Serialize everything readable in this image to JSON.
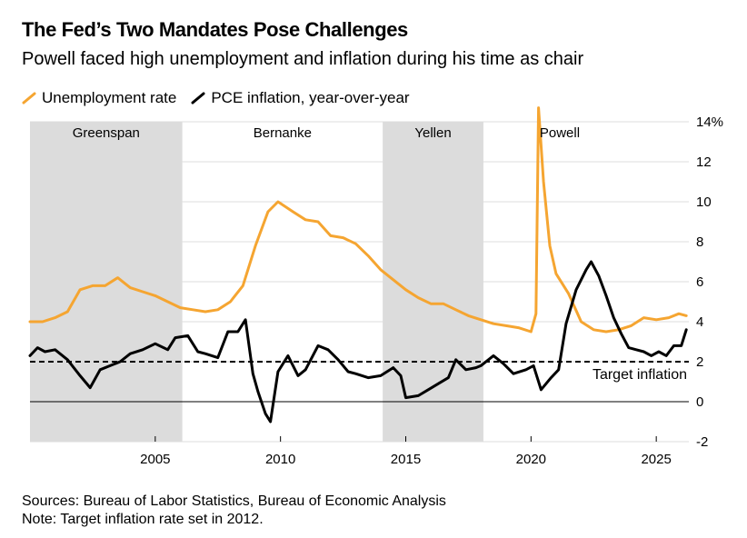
{
  "title": "The Fed’s Two Mandates Pose Challenges",
  "subtitle": "Powell faced high unemployment and inflation during his time as chair",
  "footer": {
    "sources": "Sources: Bureau of Labor Statistics, Bureau of Economic Analysis",
    "note": "Note: Target inflation rate set in 2012."
  },
  "colors": {
    "unemployment": "#f5a531",
    "inflation": "#000000",
    "shade": "#dcdcdc",
    "grid": "#dddddd"
  },
  "chart_data": {
    "type": "line",
    "x_unit": "year",
    "xlim": [
      2000,
      2026.3
    ],
    "ylim": [
      -2,
      14
    ],
    "y_ticks": [
      -2,
      0,
      2,
      4,
      6,
      8,
      10,
      12,
      14
    ],
    "y_tick_labels": [
      "-2",
      "0",
      "2",
      "4",
      "6",
      "8",
      "10",
      "12",
      "14%"
    ],
    "x_ticks": [
      2005,
      2010,
      2015,
      2020,
      2025
    ],
    "x_tick_labels": [
      "2005",
      "2010",
      "2015",
      "2020",
      "2025"
    ],
    "grid": true,
    "legend_position": "top-left",
    "chairs": [
      {
        "name": "Greenspan",
        "start": 2000,
        "end": 2006.08,
        "shaded": true
      },
      {
        "name": "Bernanke",
        "start": 2006.08,
        "end": 2014.08,
        "shaded": false
      },
      {
        "name": "Yellen",
        "start": 2014.08,
        "end": 2018.1,
        "shaded": true
      },
      {
        "name": "Powell",
        "start": 2018.1,
        "end": 2026.3,
        "shaded": false
      }
    ],
    "reference_lines": [
      {
        "label": "Target inflation",
        "y": 2,
        "style": "dashed"
      }
    ],
    "series": [
      {
        "name": "Unemployment rate",
        "color": "#f5a531",
        "points": [
          [
            2000.0,
            4.0
          ],
          [
            2000.5,
            4.0
          ],
          [
            2001.0,
            4.2
          ],
          [
            2001.5,
            4.5
          ],
          [
            2002.0,
            5.6
          ],
          [
            2002.5,
            5.8
          ],
          [
            2003.0,
            5.8
          ],
          [
            2003.5,
            6.2
          ],
          [
            2004.0,
            5.7
          ],
          [
            2004.5,
            5.5
          ],
          [
            2005.0,
            5.3
          ],
          [
            2005.5,
            5.0
          ],
          [
            2006.0,
            4.7
          ],
          [
            2006.5,
            4.6
          ],
          [
            2007.0,
            4.5
          ],
          [
            2007.5,
            4.6
          ],
          [
            2008.0,
            5.0
          ],
          [
            2008.5,
            5.8
          ],
          [
            2009.0,
            7.8
          ],
          [
            2009.5,
            9.5
          ],
          [
            2009.9,
            10.0
          ],
          [
            2010.5,
            9.5
          ],
          [
            2011.0,
            9.1
          ],
          [
            2011.5,
            9.0
          ],
          [
            2012.0,
            8.3
          ],
          [
            2012.5,
            8.2
          ],
          [
            2013.0,
            7.9
          ],
          [
            2013.5,
            7.3
          ],
          [
            2014.0,
            6.6
          ],
          [
            2014.5,
            6.1
          ],
          [
            2015.0,
            5.6
          ],
          [
            2015.5,
            5.2
          ],
          [
            2016.0,
            4.9
          ],
          [
            2016.5,
            4.9
          ],
          [
            2017.0,
            4.6
          ],
          [
            2017.5,
            4.3
          ],
          [
            2018.0,
            4.1
          ],
          [
            2018.5,
            3.9
          ],
          [
            2019.0,
            3.8
          ],
          [
            2019.5,
            3.7
          ],
          [
            2020.0,
            3.5
          ],
          [
            2020.2,
            4.4
          ],
          [
            2020.3,
            14.7
          ],
          [
            2020.5,
            11.0
          ],
          [
            2020.75,
            7.8
          ],
          [
            2021.0,
            6.4
          ],
          [
            2021.5,
            5.4
          ],
          [
            2022.0,
            4.0
          ],
          [
            2022.5,
            3.6
          ],
          [
            2023.0,
            3.5
          ],
          [
            2023.5,
            3.6
          ],
          [
            2024.0,
            3.8
          ],
          [
            2024.5,
            4.2
          ],
          [
            2025.0,
            4.1
          ],
          [
            2025.5,
            4.2
          ],
          [
            2025.9,
            4.4
          ],
          [
            2026.2,
            4.3
          ]
        ]
      },
      {
        "name": "PCE inflation, year-over-year",
        "color": "#000000",
        "points": [
          [
            2000.0,
            2.3
          ],
          [
            2000.3,
            2.7
          ],
          [
            2000.6,
            2.5
          ],
          [
            2001.0,
            2.6
          ],
          [
            2001.5,
            2.1
          ],
          [
            2002.0,
            1.3
          ],
          [
            2002.4,
            0.7
          ],
          [
            2002.8,
            1.6
          ],
          [
            2003.2,
            1.8
          ],
          [
            2003.6,
            2.0
          ],
          [
            2004.0,
            2.4
          ],
          [
            2004.5,
            2.6
          ],
          [
            2005.0,
            2.9
          ],
          [
            2005.5,
            2.6
          ],
          [
            2005.8,
            3.2
          ],
          [
            2006.3,
            3.3
          ],
          [
            2006.7,
            2.5
          ],
          [
            2007.0,
            2.4
          ],
          [
            2007.5,
            2.2
          ],
          [
            2007.9,
            3.5
          ],
          [
            2008.3,
            3.5
          ],
          [
            2008.6,
            4.1
          ],
          [
            2008.9,
            1.4
          ],
          [
            2009.1,
            0.5
          ],
          [
            2009.4,
            -0.6
          ],
          [
            2009.6,
            -1.0
          ],
          [
            2009.9,
            1.5
          ],
          [
            2010.3,
            2.3
          ],
          [
            2010.7,
            1.3
          ],
          [
            2011.0,
            1.6
          ],
          [
            2011.5,
            2.8
          ],
          [
            2011.9,
            2.6
          ],
          [
            2012.3,
            2.1
          ],
          [
            2012.7,
            1.5
          ],
          [
            2013.0,
            1.4
          ],
          [
            2013.5,
            1.2
          ],
          [
            2014.0,
            1.3
          ],
          [
            2014.5,
            1.7
          ],
          [
            2014.8,
            1.3
          ],
          [
            2015.0,
            0.2
          ],
          [
            2015.5,
            0.3
          ],
          [
            2015.9,
            0.6
          ],
          [
            2016.3,
            0.9
          ],
          [
            2016.7,
            1.2
          ],
          [
            2017.0,
            2.1
          ],
          [
            2017.4,
            1.6
          ],
          [
            2017.8,
            1.7
          ],
          [
            2018.0,
            1.8
          ],
          [
            2018.5,
            2.3
          ],
          [
            2018.9,
            1.9
          ],
          [
            2019.3,
            1.4
          ],
          [
            2019.8,
            1.6
          ],
          [
            2020.1,
            1.8
          ],
          [
            2020.4,
            0.6
          ],
          [
            2020.8,
            1.2
          ],
          [
            2021.1,
            1.6
          ],
          [
            2021.4,
            3.9
          ],
          [
            2021.8,
            5.6
          ],
          [
            2022.2,
            6.6
          ],
          [
            2022.4,
            7.0
          ],
          [
            2022.7,
            6.3
          ],
          [
            2023.0,
            5.3
          ],
          [
            2023.3,
            4.2
          ],
          [
            2023.6,
            3.4
          ],
          [
            2023.9,
            2.7
          ],
          [
            2024.2,
            2.6
          ],
          [
            2024.5,
            2.5
          ],
          [
            2024.8,
            2.3
          ],
          [
            2025.1,
            2.5
          ],
          [
            2025.4,
            2.3
          ],
          [
            2025.7,
            2.8
          ],
          [
            2026.0,
            2.8
          ],
          [
            2026.2,
            3.6
          ]
        ]
      }
    ]
  }
}
